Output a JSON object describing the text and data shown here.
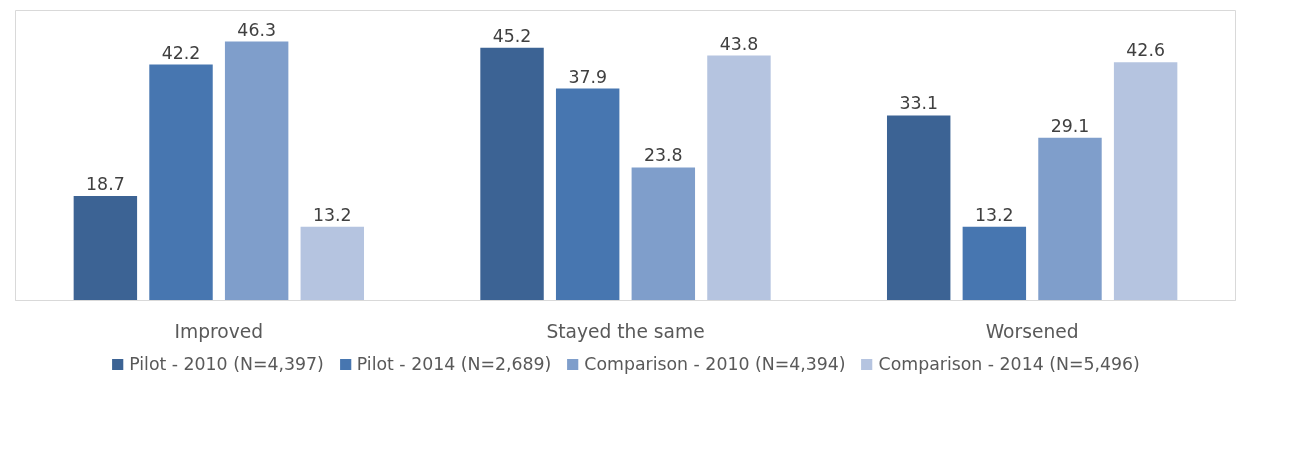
{
  "chart_data": {
    "type": "bar",
    "categories": [
      "Improved",
      "Stayed the same",
      "Worsened"
    ],
    "series": [
      {
        "name": "Pilot - 2010 (N=4,397)",
        "color": "#3c6394",
        "values": [
          18.7,
          45.2,
          33.1
        ]
      },
      {
        "name": "Pilot - 2014 (N=2,689)",
        "color": "#4776b0",
        "values": [
          42.2,
          37.9,
          13.2
        ]
      },
      {
        "name": "Comparison - 2010 (N=4,394)",
        "color": "#7f9ecb",
        "values": [
          46.3,
          23.8,
          29.1
        ]
      },
      {
        "name": "Comparison - 2014 (N=5,496)",
        "color": "#b5c4e0",
        "values": [
          13.2,
          43.8,
          42.6
        ]
      }
    ],
    "data_labels": true,
    "legend": "bottom",
    "grid": false
  }
}
